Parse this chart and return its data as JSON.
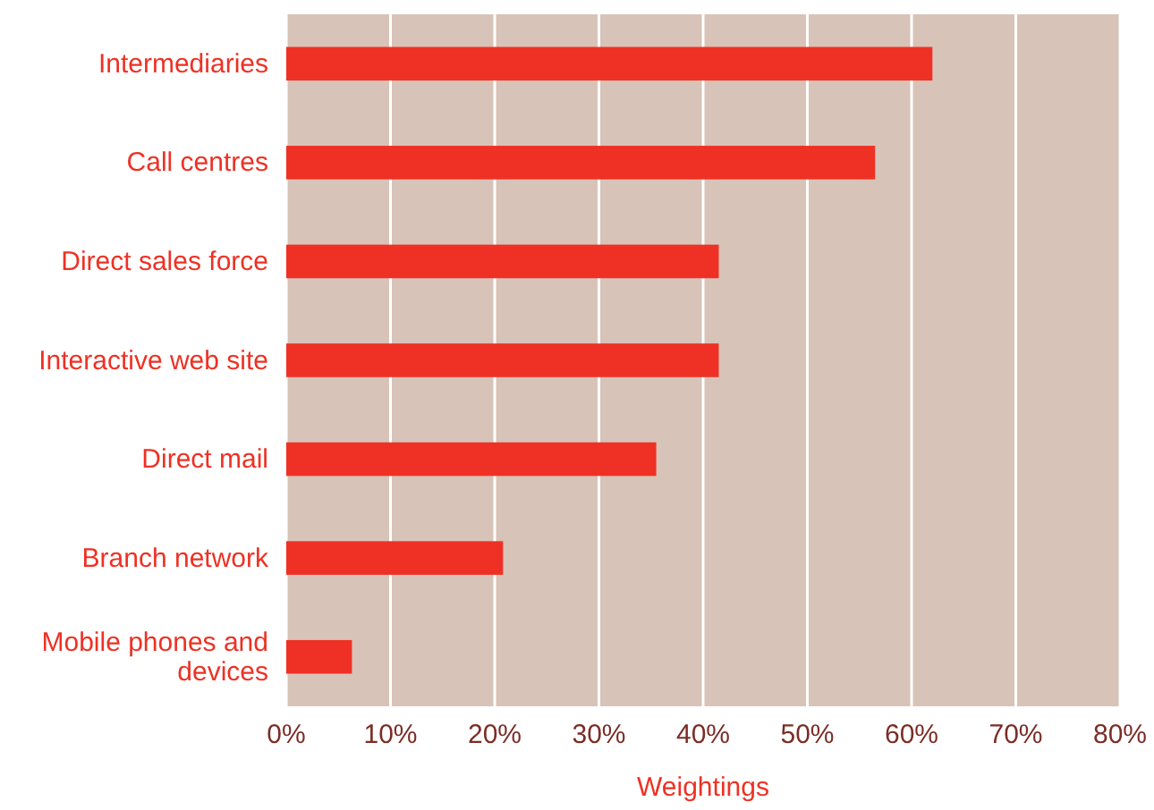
{
  "chart_data": {
    "type": "bar",
    "orientation": "horizontal",
    "xlabel": "Weightings",
    "categories": [
      "Intermediaries",
      "Call centres",
      "Direct sales force",
      "Interactive web site",
      "Direct mail",
      "Branch network",
      "Mobile phones and devices"
    ],
    "values": [
      62,
      56.5,
      41.5,
      41.5,
      35.5,
      20.8,
      6.3
    ],
    "color": "#ee3124",
    "xlim": [
      0,
      80
    ],
    "xticks": [
      {
        "value": 0,
        "label": "0%"
      },
      {
        "value": 10,
        "label": "10%"
      },
      {
        "value": 20,
        "label": "20%"
      },
      {
        "value": 30,
        "label": "30%"
      },
      {
        "value": 40,
        "label": "40%"
      },
      {
        "value": 50,
        "label": "50%"
      },
      {
        "value": 60,
        "label": "60%"
      },
      {
        "value": 70,
        "label": "70%"
      },
      {
        "value": 80,
        "label": "80%"
      }
    ],
    "grid": "x"
  }
}
